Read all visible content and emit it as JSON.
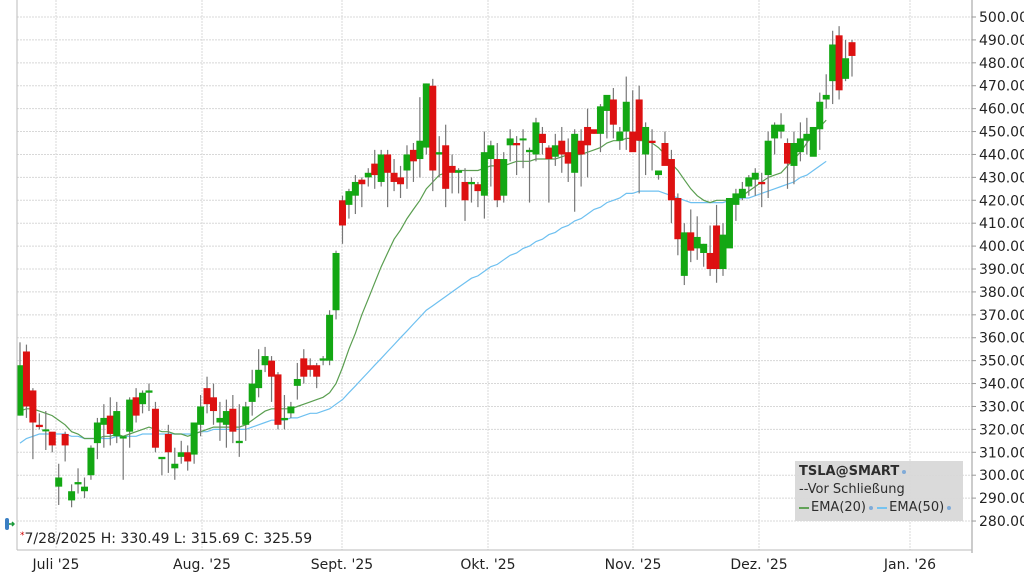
{
  "symbol": "TSLA@SMART",
  "legend": {
    "title": "TSLA@SMART",
    "prev_close_label": "--Vor Schließung",
    "ema20_label": "EMA(20)",
    "ema50_label": "EMA(50)"
  },
  "ohlc_readout": {
    "marker": "*",
    "text": "7/28/2025 H: 330.49 L: 315.69 C: 325.59"
  },
  "colors": {
    "up": "#13a713",
    "down": "#dd1111",
    "wick": "#777777",
    "ema20": "#5a9e50",
    "ema50": "#6ec0f0",
    "grid": "#d8d8d8",
    "legend_bg": "#d9d9d9"
  },
  "chart_data": {
    "type": "candlestick",
    "title": "TSLA@SMART",
    "xlabel": "",
    "ylabel": "",
    "ylim": [
      275,
      503
    ],
    "y_ticks": [
      "500.00",
      "490.00",
      "480.00",
      "470.00",
      "460.00",
      "450.00",
      "440.00",
      "430.00",
      "420.00",
      "410.00",
      "400.00",
      "390.00",
      "380.00",
      "370.00",
      "360.00",
      "350.00",
      "340.00",
      "330.00",
      "320.00",
      "310.00",
      "300.00",
      "290.00",
      "280.00"
    ],
    "x_ticks": [
      "Juli '25",
      "Aug. '25",
      "Sept. '25",
      "Okt. '25",
      "Nov. '25",
      "Dez. '25",
      "Jan. '26"
    ],
    "grid": true,
    "legend_position": "bottom-right",
    "series": [
      {
        "name": "TSLA",
        "kind": "candles",
        "values": [
          [
            326,
            348,
            326,
            358
          ],
          [
            354,
            330,
            325,
            357
          ],
          [
            337,
            323,
            307,
            338
          ],
          [
            322,
            321,
            320,
            327
          ],
          [
            320,
            320,
            311,
            328
          ],
          [
            319,
            313,
            310,
            318
          ],
          [
            295,
            299,
            287,
            305
          ],
          [
            318,
            313,
            306,
            319
          ],
          [
            289,
            293,
            286,
            296
          ],
          [
            296,
            297,
            292,
            303
          ],
          [
            293,
            295,
            290,
            299
          ],
          [
            300,
            312,
            298,
            313
          ],
          [
            314,
            323,
            307,
            325
          ],
          [
            322,
            325,
            312,
            331
          ],
          [
            326,
            318,
            313,
            334
          ],
          [
            317,
            328,
            314,
            332
          ],
          [
            316,
            317,
            298,
            317
          ],
          [
            319,
            333,
            312,
            334
          ],
          [
            334,
            326,
            323,
            338
          ],
          [
            331,
            336,
            327,
            337
          ],
          [
            336,
            337,
            328,
            340
          ],
          [
            329,
            312,
            310,
            332
          ],
          [
            307,
            308,
            300,
            307
          ],
          [
            318,
            310,
            301,
            322
          ],
          [
            303,
            305,
            298,
            312
          ],
          [
            308,
            310,
            305,
            315
          ],
          [
            310,
            306,
            302,
            313
          ],
          [
            309,
            323,
            305,
            320
          ],
          [
            322,
            330,
            317,
            335
          ],
          [
            338,
            331,
            327,
            343
          ],
          [
            334,
            328,
            322,
            340
          ],
          [
            323,
            325,
            315,
            332
          ],
          [
            322,
            328,
            312,
            333
          ],
          [
            329,
            319,
            314,
            335
          ],
          [
            314,
            315,
            308,
            331
          ],
          [
            322,
            330,
            315,
            332
          ],
          [
            332,
            340,
            326,
            346
          ],
          [
            338,
            346,
            334,
            355
          ],
          [
            348,
            352,
            345,
            356
          ],
          [
            350,
            343,
            332,
            352
          ],
          [
            344,
            322,
            320,
            345
          ],
          [
            324,
            325,
            320,
            335
          ],
          [
            327,
            330,
            325,
            332
          ],
          [
            339,
            342,
            333,
            349
          ],
          [
            351,
            343,
            340,
            355
          ],
          [
            348,
            346,
            343,
            351
          ],
          [
            348,
            343,
            338,
            349
          ],
          [
            350,
            351,
            348,
            352
          ],
          [
            350,
            370,
            348,
            372
          ],
          [
            372,
            397,
            368,
            398
          ],
          [
            420,
            409,
            401,
            422
          ],
          [
            418,
            424,
            412,
            425
          ],
          [
            422,
            428,
            414,
            431
          ],
          [
            429,
            427,
            417,
            430
          ],
          [
            430,
            432,
            426,
            434
          ],
          [
            436,
            431,
            425,
            442
          ],
          [
            428,
            440,
            426,
            442
          ],
          [
            440,
            432,
            417,
            442
          ],
          [
            432,
            428,
            424,
            438
          ],
          [
            430,
            427,
            421,
            435
          ],
          [
            433,
            440,
            425,
            444
          ],
          [
            442,
            437,
            428,
            445
          ],
          [
            438,
            446,
            430,
            465
          ],
          [
            443,
            471,
            440,
            471
          ],
          [
            470,
            433,
            424,
            473
          ],
          [
            440,
            441,
            430,
            448
          ],
          [
            444,
            425,
            417,
            453
          ],
          [
            435,
            432,
            423,
            440
          ],
          [
            432,
            433,
            423,
            434
          ],
          [
            428,
            420,
            411,
            434
          ],
          [
            427,
            428,
            419,
            430
          ],
          [
            427,
            424,
            417,
            428
          ],
          [
            422,
            441,
            412,
            450
          ],
          [
            438,
            444,
            426,
            446
          ],
          [
            438,
            420,
            417,
            445
          ],
          [
            422,
            438,
            419,
            441
          ],
          [
            444,
            447,
            437,
            451
          ],
          [
            445,
            444,
            431,
            448
          ],
          [
            447,
            447,
            434,
            451
          ],
          [
            441,
            442,
            419,
            443
          ],
          [
            440,
            454,
            437,
            456
          ],
          [
            449,
            445,
            440,
            452
          ],
          [
            443,
            438,
            419,
            444
          ],
          [
            439,
            444,
            435,
            449
          ],
          [
            446,
            440,
            432,
            452
          ],
          [
            441,
            436,
            428,
            447
          ],
          [
            432,
            449,
            415,
            451
          ],
          [
            446,
            440,
            426,
            451
          ],
          [
            452,
            444,
            430,
            460
          ],
          [
            451,
            449,
            449,
            450
          ],
          [
            449,
            461,
            441,
            462
          ],
          [
            459,
            466,
            447,
            465
          ],
          [
            464,
            453,
            447,
            469
          ],
          [
            446,
            450,
            442,
            452
          ],
          [
            450,
            463,
            442,
            474
          ],
          [
            450,
            441,
            445,
            468
          ],
          [
            464,
            446,
            423,
            470
          ],
          [
            440,
            452,
            431,
            454
          ],
          [
            446,
            445,
            433,
            451
          ],
          [
            431,
            433,
            429,
            432
          ],
          [
            445,
            435,
            437,
            450
          ],
          [
            438,
            420,
            410,
            442
          ],
          [
            421,
            403,
            396,
            423
          ],
          [
            387,
            406,
            383,
            410
          ],
          [
            406,
            398,
            393,
            416
          ],
          [
            399,
            404,
            394,
            413
          ],
          [
            397,
            401,
            391,
            401
          ],
          [
            397,
            390,
            387,
            409
          ],
          [
            409,
            390,
            384,
            418
          ],
          [
            390,
            405,
            387,
            410
          ],
          [
            399,
            421,
            400,
            421
          ],
          [
            418,
            423,
            411,
            425
          ],
          [
            421,
            425,
            420,
            428
          ],
          [
            426,
            430,
            422,
            431
          ],
          [
            429,
            432,
            422,
            434
          ],
          [
            428,
            427,
            417,
            432
          ],
          [
            431,
            446,
            421,
            450
          ],
          [
            447,
            453,
            440,
            454
          ],
          [
            450,
            453,
            447,
            458
          ],
          [
            445,
            436,
            425,
            447
          ],
          [
            435,
            445,
            427,
            450
          ],
          [
            441,
            447,
            437,
            454
          ],
          [
            446,
            449,
            440,
            456
          ],
          [
            439,
            452,
            447,
            452
          ],
          [
            451,
            463,
            442,
            467
          ],
          [
            464,
            466,
            460,
            475
          ],
          [
            472,
            488,
            462,
            494
          ],
          [
            492,
            468,
            464,
            496
          ],
          [
            473,
            482,
            472,
            490
          ],
          [
            489,
            483,
            474,
            490
          ]
        ]
      },
      {
        "name": "EMA(20)",
        "kind": "line",
        "values": [
          328,
          329,
          329,
          328,
          327,
          326,
          324,
          322,
          319,
          318,
          316,
          316,
          316,
          317,
          317,
          318,
          317,
          318,
          319,
          320,
          321,
          320,
          319,
          319,
          318,
          318,
          317,
          318,
          319,
          320,
          321,
          321,
          321,
          321,
          321,
          322,
          324,
          326,
          328,
          329,
          329,
          329,
          329,
          330,
          331,
          332,
          333,
          334,
          336,
          340,
          347,
          355,
          362,
          370,
          377,
          384,
          391,
          397,
          403,
          407,
          412,
          416,
          420,
          425,
          428,
          431,
          432,
          433,
          433,
          433,
          433,
          433,
          434,
          435,
          435,
          435,
          436,
          437,
          437,
          437,
          438,
          438,
          438,
          438,
          439,
          440,
          440,
          440,
          441,
          442,
          443,
          445,
          446,
          446,
          447,
          447,
          446,
          446,
          445,
          443,
          440,
          436,
          433,
          429,
          425,
          422,
          420,
          419,
          420,
          420,
          420,
          421,
          422,
          424,
          426,
          428,
          430,
          431,
          432,
          435,
          438,
          441,
          445,
          450,
          452,
          455
        ]
      },
      {
        "name": "EMA(50)",
        "kind": "line",
        "values": [
          314,
          316,
          317,
          318,
          318,
          318,
          318,
          318,
          317,
          317,
          316,
          316,
          316,
          316,
          316,
          317,
          317,
          317,
          317,
          318,
          318,
          318,
          318,
          318,
          318,
          318,
          318,
          318,
          319,
          319,
          320,
          320,
          320,
          320,
          320,
          320,
          321,
          322,
          323,
          324,
          324,
          324,
          325,
          325,
          326,
          327,
          327,
          328,
          329,
          331,
          333,
          336,
          339,
          342,
          345,
          348,
          351,
          354,
          357,
          360,
          363,
          366,
          369,
          372,
          374,
          376,
          378,
          380,
          382,
          384,
          386,
          387,
          389,
          391,
          392,
          394,
          396,
          397,
          399,
          400,
          402,
          403,
          405,
          406,
          408,
          409,
          411,
          412,
          414,
          416,
          417,
          419,
          420,
          421,
          423,
          423,
          424,
          424,
          424,
          424,
          423,
          422,
          421,
          420,
          419,
          419,
          419,
          419,
          419,
          419,
          420,
          420,
          421,
          421,
          422,
          423,
          424,
          425,
          426,
          427,
          428,
          430,
          431,
          433,
          435,
          437
        ]
      }
    ]
  }
}
